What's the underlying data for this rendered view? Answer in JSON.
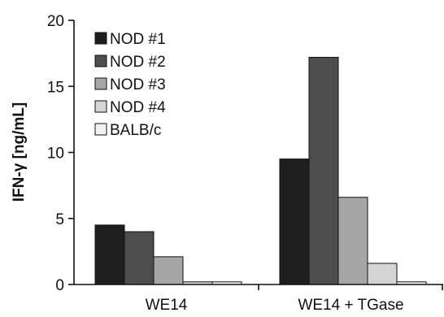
{
  "chart_data": {
    "type": "bar",
    "title": "",
    "xlabel": "",
    "ylabel": "IFN-γ [ng/mL]",
    "ylim": [
      0,
      20
    ],
    "yticks": [
      0,
      5,
      10,
      15,
      20
    ],
    "grid": false,
    "legend_position": "top-left",
    "categories": [
      "WE14",
      "WE14 + TGase"
    ],
    "series": [
      {
        "name": "NOD #1",
        "color": "#1e1e1e",
        "values": [
          4.5,
          9.5
        ]
      },
      {
        "name": "NOD #2",
        "color": "#4d4d4d",
        "values": [
          4.0,
          17.2
        ]
      },
      {
        "name": "NOD #3",
        "color": "#a6a6a6",
        "values": [
          2.1,
          6.6
        ]
      },
      {
        "name": "NOD #4",
        "color": "#d4d4d4",
        "values": [
          0.2,
          1.6
        ]
      },
      {
        "name": "BALB/c",
        "color": "#f2f2f2",
        "values": [
          0.2,
          0.2
        ]
      }
    ]
  }
}
